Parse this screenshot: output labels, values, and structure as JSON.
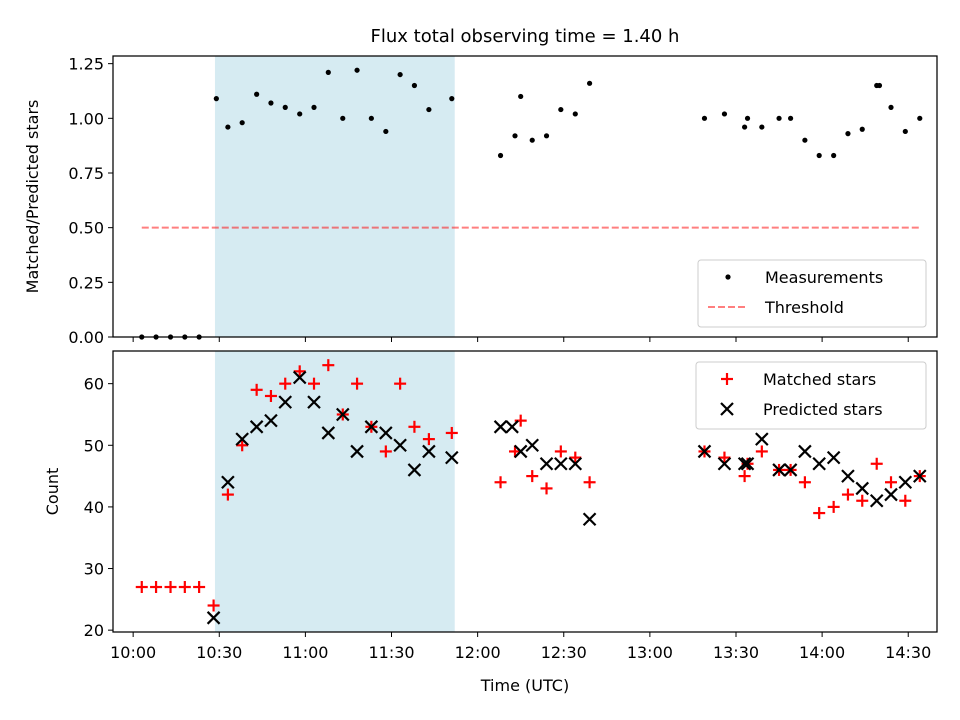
{
  "title": "Flux total observing time = 1.40 h",
  "colors": {
    "highlight": "#add8e6",
    "measurements": "#000000",
    "threshold": "#ff0000",
    "matched": "#ff0000",
    "predicted": "#000000"
  },
  "x_axis": {
    "label": "Time (UTC)",
    "unit": "hours (UTC)",
    "range": [
      9.883,
      14.667
    ],
    "ticks": [
      {
        "value": 10.0,
        "label": "10:00"
      },
      {
        "value": 10.5,
        "label": "10:30"
      },
      {
        "value": 11.0,
        "label": "11:00"
      },
      {
        "value": 11.5,
        "label": "11:30"
      },
      {
        "value": 12.0,
        "label": "12:00"
      },
      {
        "value": 12.5,
        "label": "12:30"
      },
      {
        "value": 13.0,
        "label": "13:00"
      },
      {
        "value": 13.5,
        "label": "13:30"
      },
      {
        "value": 14.0,
        "label": "14:00"
      },
      {
        "value": 14.5,
        "label": "14:30"
      }
    ]
  },
  "chart_data": [
    {
      "type": "scatter",
      "panel": "top",
      "ylabel": "Matched/Predicted stars",
      "ylim": [
        0,
        1.285
      ],
      "yticks": [
        {
          "value": 0.0,
          "label": "0.00"
        },
        {
          "value": 0.25,
          "label": "0.25"
        },
        {
          "value": 0.5,
          "label": "0.50"
        },
        {
          "value": 0.75,
          "label": "0.75"
        },
        {
          "value": 1.0,
          "label": "1.00"
        },
        {
          "value": 1.25,
          "label": "1.25"
        }
      ],
      "highlight_span": [
        10.475,
        11.867
      ],
      "legend": {
        "placement": "lower-right",
        "entries": [
          "Measurements",
          "Threshold"
        ]
      },
      "series": [
        {
          "name": "Measurements",
          "marker": "dot",
          "x": [
            10.05,
            10.133,
            10.217,
            10.3,
            10.383,
            10.483,
            10.55,
            10.633,
            10.717,
            10.8,
            10.883,
            10.967,
            11.05,
            11.133,
            11.217,
            11.3,
            11.383,
            11.467,
            11.55,
            11.633,
            11.717,
            11.85,
            12.133,
            12.217,
            12.25,
            12.317,
            12.4,
            12.483,
            12.567,
            12.65,
            13.317,
            13.433,
            13.55,
            13.567,
            13.65,
            13.75,
            13.817,
            13.9,
            13.983,
            14.067,
            14.15,
            14.233,
            14.317,
            14.333,
            14.4,
            14.483,
            14.567
          ],
          "y": [
            0.0,
            0.0,
            0.0,
            0.0,
            0.0,
            1.09,
            0.96,
            0.98,
            1.11,
            1.07,
            1.05,
            1.02,
            1.05,
            1.21,
            1.0,
            1.22,
            1.0,
            0.94,
            1.2,
            1.15,
            1.04,
            1.09,
            0.83,
            0.92,
            1.1,
            0.9,
            0.92,
            1.04,
            1.02,
            1.16,
            1.0,
            1.02,
            0.96,
            1.0,
            0.96,
            1.0,
            1.0,
            0.9,
            0.83,
            0.83,
            0.93,
            0.95,
            1.15,
            1.15,
            1.05,
            0.94,
            1.0
          ]
        },
        {
          "name": "Threshold",
          "type": "line",
          "style": "dashed",
          "x": [
            10.05,
            14.567
          ],
          "y": [
            0.5,
            0.5
          ]
        }
      ]
    },
    {
      "type": "scatter",
      "panel": "bottom",
      "ylabel": "Count",
      "ylim": [
        19.7,
        65.3
      ],
      "yticks": [
        {
          "value": 20,
          "label": "20"
        },
        {
          "value": 30,
          "label": "30"
        },
        {
          "value": 40,
          "label": "40"
        },
        {
          "value": 50,
          "label": "50"
        },
        {
          "value": 60,
          "label": "60"
        }
      ],
      "highlight_span": [
        10.475,
        11.867
      ],
      "legend": {
        "placement": "top-right",
        "entries": [
          "Matched stars",
          "Predicted stars"
        ]
      },
      "series": [
        {
          "name": "Matched stars",
          "marker": "plus",
          "x": [
            10.05,
            10.133,
            10.217,
            10.3,
            10.383,
            10.467,
            10.55,
            10.633,
            10.717,
            10.8,
            10.883,
            10.967,
            11.05,
            11.133,
            11.217,
            11.3,
            11.383,
            11.467,
            11.55,
            11.633,
            11.717,
            11.85,
            12.133,
            12.217,
            12.25,
            12.317,
            12.4,
            12.483,
            12.567,
            12.65,
            13.317,
            13.433,
            13.55,
            13.567,
            13.65,
            13.75,
            13.817,
            13.9,
            13.983,
            14.067,
            14.15,
            14.233,
            14.317,
            14.4,
            14.483,
            14.567
          ],
          "y": [
            27,
            27,
            27,
            27,
            27,
            24,
            42,
            50,
            59,
            58,
            60,
            62,
            60,
            63,
            55,
            60,
            53,
            49,
            60,
            53,
            51,
            52,
            44,
            49,
            54,
            45,
            43,
            49,
            48,
            44,
            49,
            48,
            45,
            47,
            49,
            46,
            46,
            44,
            39,
            40,
            42,
            41,
            47,
            44,
            41,
            45
          ]
        },
        {
          "name": "Predicted stars",
          "marker": "x",
          "x": [
            10.467,
            10.55,
            10.633,
            10.717,
            10.8,
            10.883,
            10.967,
            11.05,
            11.133,
            11.217,
            11.3,
            11.383,
            11.467,
            11.55,
            11.633,
            11.717,
            11.85,
            12.133,
            12.2,
            12.25,
            12.317,
            12.4,
            12.483,
            12.567,
            12.65,
            13.317,
            13.433,
            13.55,
            13.567,
            13.65,
            13.75,
            13.817,
            13.9,
            13.983,
            14.067,
            14.15,
            14.233,
            14.317,
            14.4,
            14.483,
            14.567
          ],
          "y": [
            22,
            44,
            51,
            53,
            54,
            57,
            61,
            57,
            52,
            55,
            49,
            53,
            52,
            50,
            46,
            49,
            48,
            53,
            53,
            49,
            50,
            47,
            47,
            47,
            38,
            49,
            47,
            47,
            47,
            51,
            46,
            46,
            49,
            47,
            48,
            45,
            43,
            41,
            42,
            44,
            45
          ]
        }
      ]
    }
  ]
}
